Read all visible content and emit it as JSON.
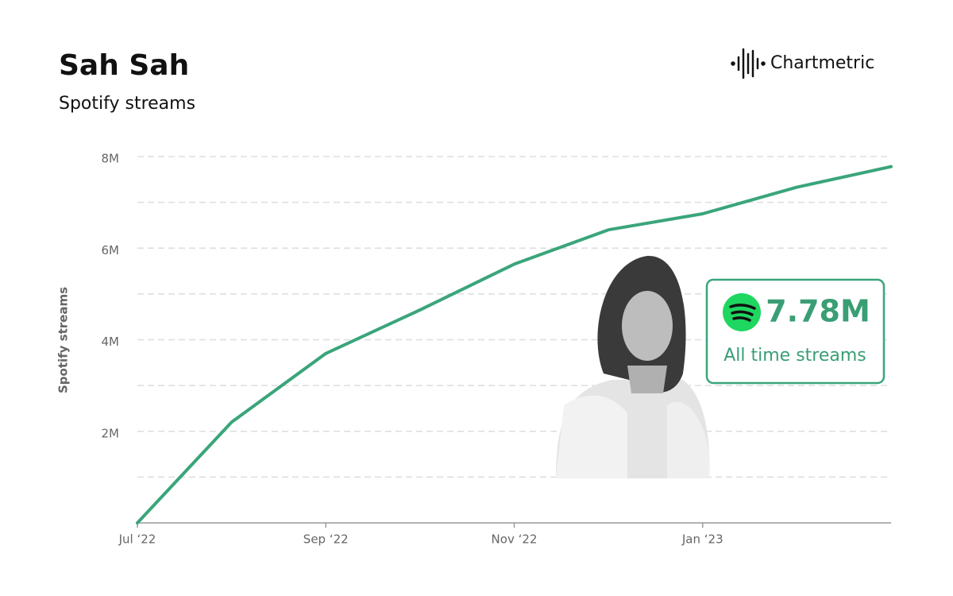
{
  "brand": "Chartmetric",
  "stat": {
    "label": "7.78M",
    "caption": "All time streams"
  },
  "chart_data": {
    "type": "line",
    "title": "Sah Sah",
    "subtitle": "Spotify streams",
    "y_label": "Spotify streams",
    "x": [
      "2022-07",
      "2022-08",
      "2022-09",
      "2022-10",
      "2022-11",
      "2022-12",
      "2023-01",
      "2023-02",
      "2023-03"
    ],
    "values": [
      0,
      2200000,
      3700000,
      4650000,
      5650000,
      6400000,
      6750000,
      7330000,
      7780000
    ],
    "color": "#3aa57a",
    "xlim": [
      "2022-07",
      "2023-03"
    ],
    "xticks": [
      {
        "value": "2022-07",
        "label": "Jul ‘22"
      },
      {
        "value": "2022-09",
        "label": "Sep ‘22"
      },
      {
        "value": "2022-11",
        "label": "Nov ‘22"
      },
      {
        "value": "2023-01",
        "label": "Jan ‘23"
      }
    ],
    "ylim": [
      0,
      8000000
    ],
    "yticks": [
      {
        "value": 2000000,
        "label": "2M"
      },
      {
        "value": 4000000,
        "label": "4M"
      },
      {
        "value": 6000000,
        "label": "6M"
      },
      {
        "value": 8000000,
        "label": "8M"
      }
    ],
    "minor_yticks": [
      1000000,
      3000000,
      5000000,
      7000000
    ],
    "grid": true
  }
}
